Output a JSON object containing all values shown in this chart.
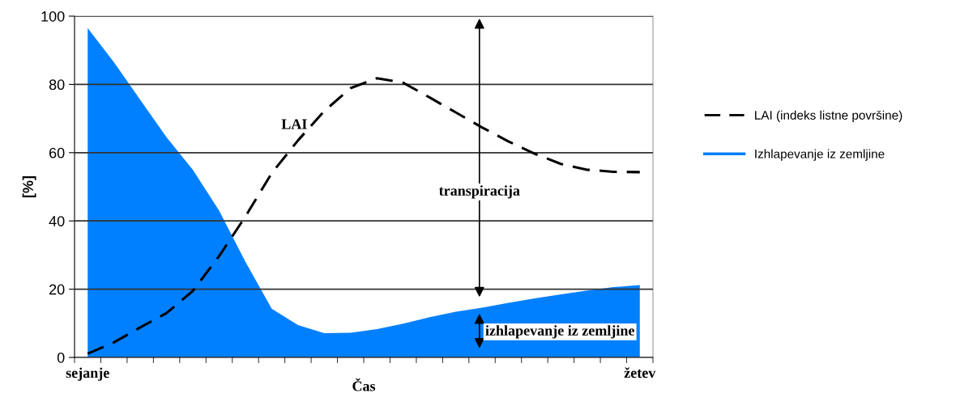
{
  "chart_data": {
    "type": "line",
    "xlabel": "Čas",
    "ylabel": "[%]",
    "categories": [
      "sejanje",
      null,
      null,
      null,
      null,
      null,
      null,
      null,
      null,
      null,
      null,
      null,
      null,
      null,
      null,
      null,
      null,
      null,
      null,
      null,
      null,
      "žetev"
    ],
    "ylim": [
      0,
      100
    ],
    "yticks": [
      0,
      20,
      40,
      60,
      80,
      100
    ],
    "grid": "y",
    "legend": "right",
    "series": [
      {
        "name": "LAI (indeks listne površine)",
        "line_style": "dashed",
        "color": "#000000",
        "values": [
          1.1,
          4.4,
          8.8,
          13,
          19.5,
          29.7,
          41.3,
          54,
          63.6,
          72.2,
          78.9,
          81.8,
          80.5,
          76.2,
          71.8,
          67.4,
          63.3,
          59.7,
          56.7,
          55,
          54.4,
          54.3
        ]
      },
      {
        "name": "Izhlapevanje iz zemljine",
        "type": "area",
        "color": "#0080ff",
        "values": [
          96.5,
          86.5,
          75.5,
          64.5,
          55,
          43,
          28,
          14.3,
          9.5,
          7.1,
          7.2,
          8.3,
          9.9,
          11.8,
          13.4,
          14.6,
          16,
          17.3,
          18.5,
          19.6,
          20.6,
          21.2
        ]
      }
    ],
    "annotations": [
      "LAI",
      "transpiracija",
      "izhlapevanje iz zemljine"
    ]
  }
}
